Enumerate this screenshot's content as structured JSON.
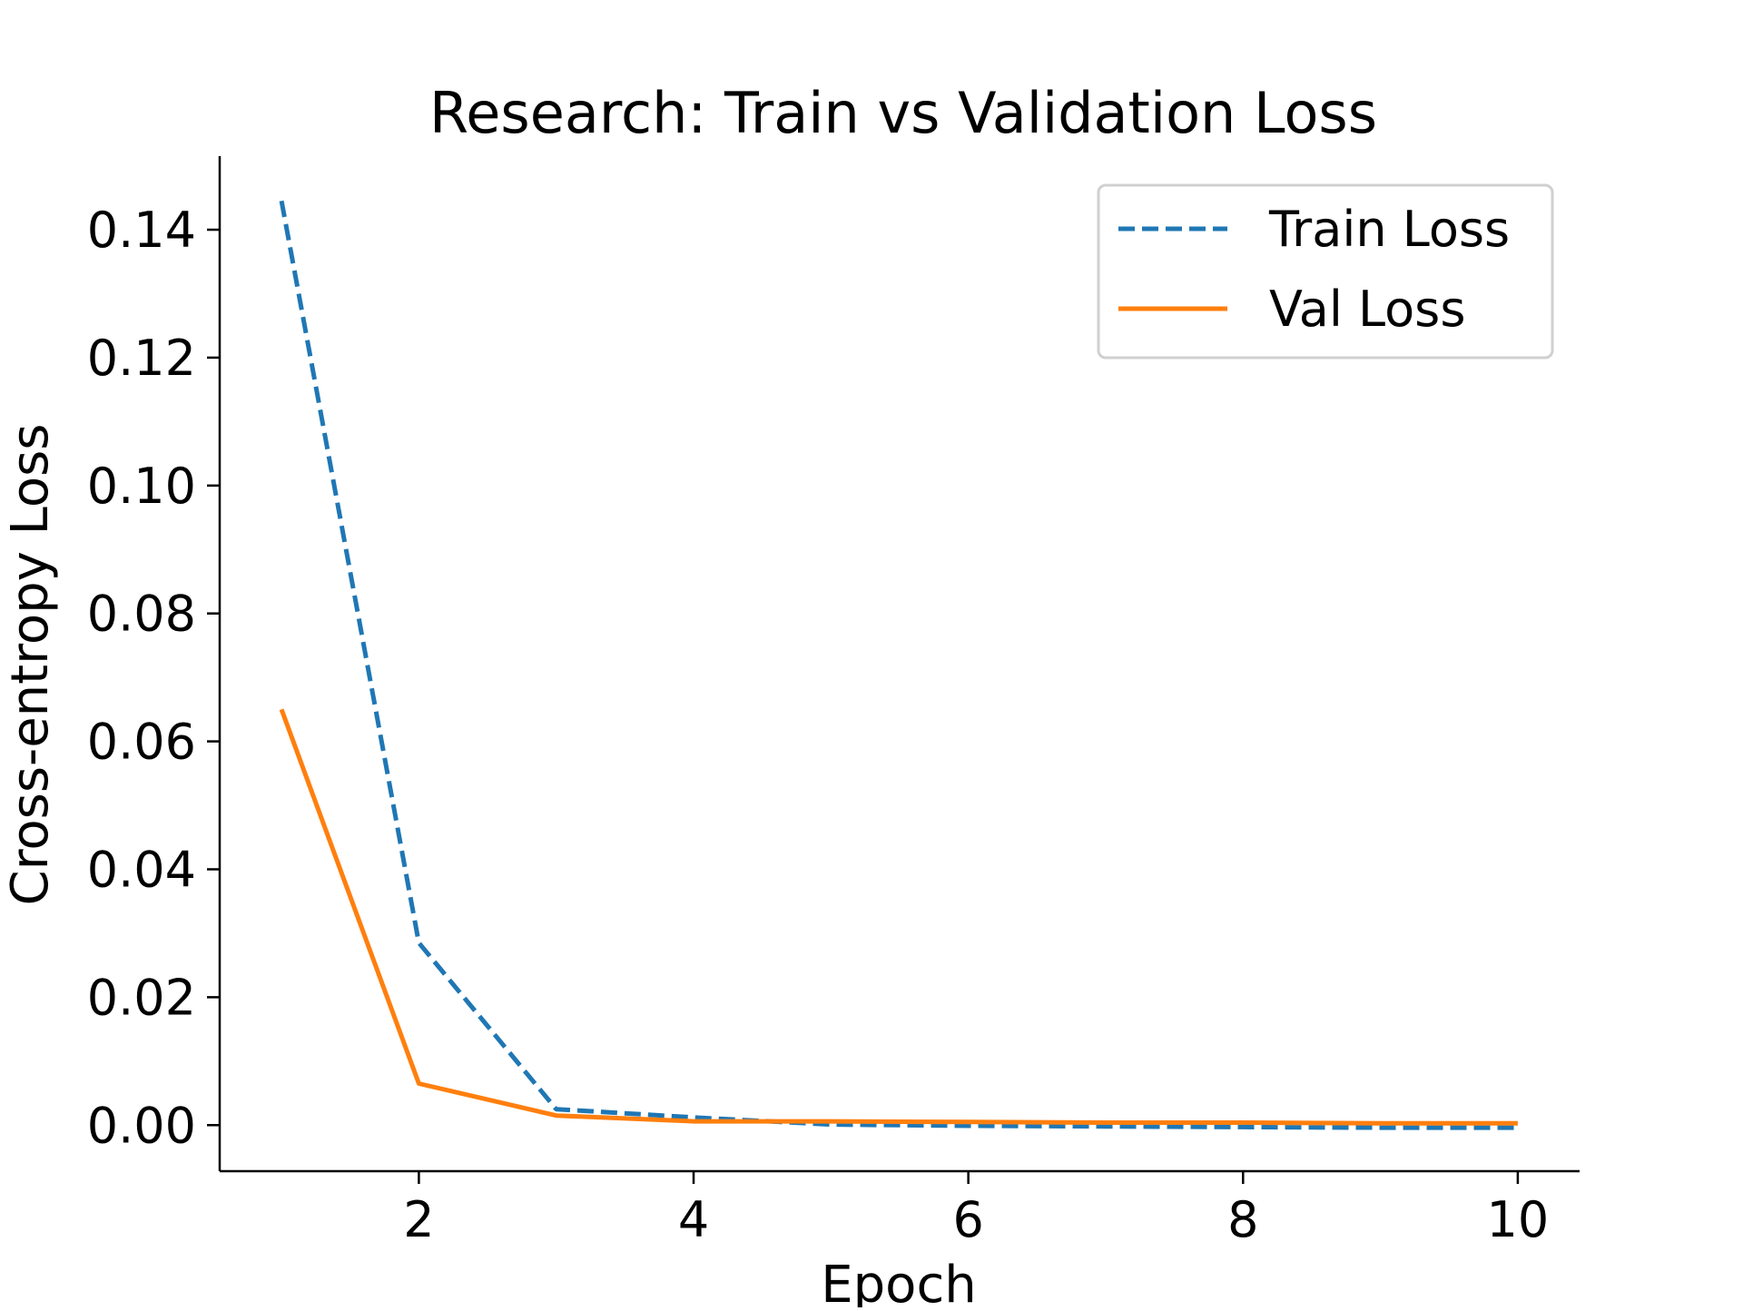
{
  "chart_data": {
    "type": "line",
    "title": "Research: Train vs Validation Loss",
    "xlabel": "Epoch",
    "ylabel": "Cross-entropy Loss",
    "x": [
      1,
      2,
      3,
      4,
      5,
      6,
      7,
      8,
      9,
      10
    ],
    "xlim": [
      0.55,
      10.45
    ],
    "ylim": [
      -0.0072,
      0.1515
    ],
    "xticks": [
      2,
      4,
      6,
      8,
      10
    ],
    "xtick_labels": [
      "2",
      "4",
      "6",
      "8",
      "10"
    ],
    "yticks": [
      0.0,
      0.02,
      0.04,
      0.06,
      0.08,
      0.1,
      0.12,
      0.14
    ],
    "ytick_labels": [
      "0.00",
      "0.02",
      "0.04",
      "0.06",
      "0.08",
      "0.10",
      "0.12",
      "0.14"
    ],
    "grid": false,
    "legend_position": "top-right",
    "series": [
      {
        "name": "Train Loss",
        "style": "dashed",
        "color": "#1f77b4",
        "values": [
          0.1445,
          0.0285,
          0.0025,
          0.0012,
          0.0001,
          -0.0001,
          -0.0002,
          -0.0003,
          -0.0004,
          -0.0004
        ]
      },
      {
        "name": "Val Loss",
        "style": "solid",
        "color": "#ff7f0e",
        "values": [
          0.065,
          0.0065,
          0.0015,
          0.0006,
          0.0006,
          0.0005,
          0.0004,
          0.0004,
          0.0003,
          0.0003
        ]
      }
    ]
  }
}
